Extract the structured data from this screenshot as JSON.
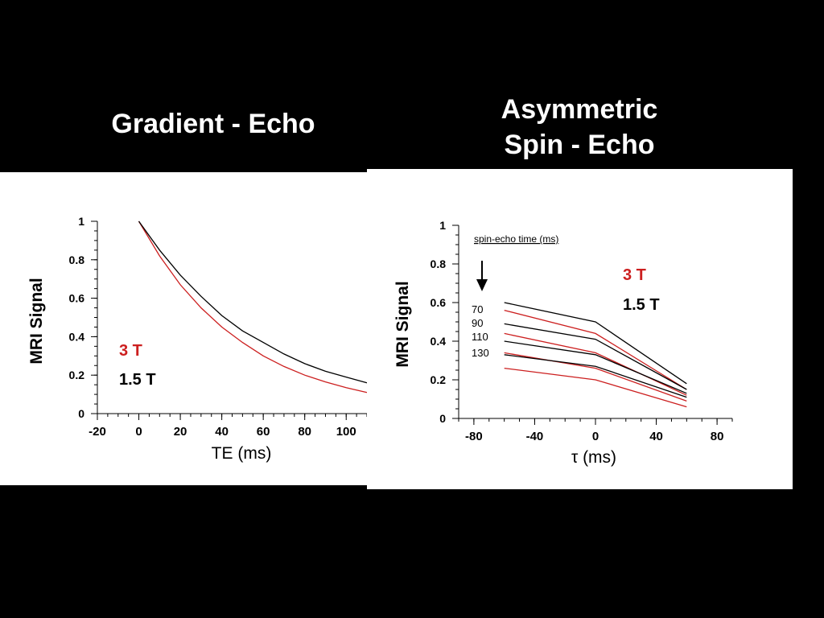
{
  "slide": {
    "left_title": "Gradient - Echo",
    "right_title_line1": "Asymmetric",
    "right_title_line2": "Spin - Echo"
  },
  "colors": {
    "field_3T": "#cc1f1f",
    "field_1_5T": "#000000"
  },
  "chart_data": [
    {
      "type": "line",
      "xlabel": "TE (ms)",
      "ylabel": "MRI Signal",
      "xlim": [
        -20,
        110
      ],
      "ylim": [
        0,
        1
      ],
      "xticks": [
        -20,
        0,
        20,
        40,
        60,
        80,
        100
      ],
      "yticks": [
        0,
        0.2,
        0.4,
        0.6,
        0.8,
        1
      ],
      "xtick_labels": [
        "-20",
        "0",
        "20",
        "40",
        "60",
        "80",
        "100"
      ],
      "ytick_labels": [
        "0",
        "0.2",
        "0.4",
        "0.6",
        "0.8",
        "1"
      ],
      "legend": [
        "3 T",
        "1.5 T"
      ],
      "series": [
        {
          "name": "3 T",
          "color": "#cc1f1f",
          "x": [
            0,
            10,
            20,
            30,
            40,
            50,
            60,
            70,
            80,
            90,
            100,
            110
          ],
          "y": [
            1.0,
            0.82,
            0.67,
            0.55,
            0.45,
            0.37,
            0.3,
            0.245,
            0.2,
            0.165,
            0.135,
            0.11
          ]
        },
        {
          "name": "1.5 T",
          "color": "#000000",
          "x": [
            0,
            10,
            20,
            30,
            40,
            50,
            60,
            70,
            80,
            90,
            100,
            110
          ],
          "y": [
            1.0,
            0.85,
            0.72,
            0.61,
            0.51,
            0.43,
            0.37,
            0.31,
            0.26,
            0.22,
            0.19,
            0.16
          ]
        }
      ]
    },
    {
      "type": "line",
      "xlabel": "τ (ms)",
      "ylabel": "MRI Signal",
      "xlim": [
        -90,
        90
      ],
      "ylim": [
        0,
        1
      ],
      "xticks": [
        -80,
        -40,
        0,
        40,
        80
      ],
      "yticks": [
        0,
        0.2,
        0.4,
        0.6,
        0.8,
        1
      ],
      "xtick_labels": [
        "-80",
        "-40",
        "0",
        "40",
        "80"
      ],
      "ytick_labels": [
        "0",
        "0.2",
        "0.4",
        "0.6",
        "0.8",
        "1"
      ],
      "annotation_title": "spin-echo time (ms)",
      "echo_times": [
        "70",
        "90",
        "110",
        "130"
      ],
      "legend": [
        "3 T",
        "1.5 T"
      ],
      "series": [
        {
          "name": "1.5 T, TE 70",
          "color": "#000000",
          "x": [
            -60,
            0,
            60
          ],
          "y": [
            0.6,
            0.5,
            0.18
          ]
        },
        {
          "name": "3 T, TE 70",
          "color": "#cc1f1f",
          "x": [
            -60,
            0,
            60
          ],
          "y": [
            0.56,
            0.44,
            0.15
          ]
        },
        {
          "name": "1.5 T, TE 90",
          "color": "#000000",
          "x": [
            -60,
            0,
            60
          ],
          "y": [
            0.49,
            0.41,
            0.15
          ]
        },
        {
          "name": "3 T, TE 90",
          "color": "#cc1f1f",
          "x": [
            -60,
            0,
            60
          ],
          "y": [
            0.44,
            0.34,
            0.12
          ]
        },
        {
          "name": "1.5 T, TE 110",
          "color": "#000000",
          "x": [
            -60,
            0,
            60
          ],
          "y": [
            0.4,
            0.33,
            0.13
          ]
        },
        {
          "name": "3 T, TE 110",
          "color": "#cc1f1f",
          "x": [
            -60,
            0,
            60
          ],
          "y": [
            0.34,
            0.26,
            0.09
          ]
        },
        {
          "name": "1.5 T, TE 130",
          "color": "#000000",
          "x": [
            -60,
            0,
            60
          ],
          "y": [
            0.33,
            0.27,
            0.11
          ]
        },
        {
          "name": "3 T, TE 130",
          "color": "#cc1f1f",
          "x": [
            -60,
            0,
            60
          ],
          "y": [
            0.26,
            0.2,
            0.06
          ]
        }
      ]
    }
  ]
}
